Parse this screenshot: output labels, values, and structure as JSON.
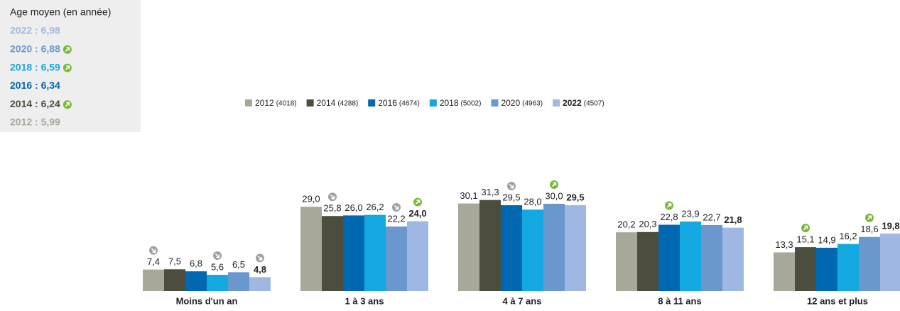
{
  "summary": {
    "title": "Age moyen (en année)",
    "items": [
      {
        "label": "2022 : 6,98",
        "color": "#9fb8e3",
        "trend": null
      },
      {
        "label": "2020 : 6,88",
        "color": "#6b97cf",
        "trend": "up"
      },
      {
        "label": "2018 : 6,59",
        "color": "#13a8e0",
        "trend": "up"
      },
      {
        "label": "2016 : 6,34",
        "color": "#0067b1",
        "trend": null
      },
      {
        "label": "2014 : 6,24",
        "color": "#4d4d3f",
        "trend": "up"
      },
      {
        "label": "2012 : 5,99",
        "color": "#a7a89a",
        "trend": null
      }
    ]
  },
  "chart_data": {
    "type": "bar",
    "categories": [
      "Moins d'un an",
      "1 à 3 ans",
      "4 à 7 ans",
      "8 à 11 ans",
      "12 ans et plus"
    ],
    "series": [
      {
        "name": "2012",
        "count": "(4018)",
        "color": "#a7a89a",
        "bold": false,
        "values": [
          7.4,
          29.0,
          30.1,
          20.2,
          13.3
        ],
        "value_labels": [
          "7,4",
          "29,0",
          "30,1",
          "20,2",
          "13,3"
        ],
        "trends": [
          "down",
          null,
          null,
          null,
          null
        ]
      },
      {
        "name": "2014",
        "count": "(4288)",
        "color": "#4d4d3f",
        "bold": false,
        "values": [
          7.5,
          25.8,
          31.3,
          20.3,
          15.1
        ],
        "value_labels": [
          "7,5",
          "25,8",
          "31,3",
          "20,3",
          "15,1"
        ],
        "trends": [
          null,
          "down",
          null,
          null,
          "up"
        ]
      },
      {
        "name": "2016",
        "count": "(4674)",
        "color": "#0067b1",
        "bold": false,
        "values": [
          6.8,
          26.0,
          29.5,
          22.8,
          14.9
        ],
        "value_labels": [
          "6,8",
          "26,0",
          "29,5",
          "22,8",
          "14,9"
        ],
        "trends": [
          null,
          null,
          "down",
          "up",
          null
        ]
      },
      {
        "name": "2018",
        "count": "(5002)",
        "color": "#13a8e0",
        "bold": false,
        "values": [
          5.6,
          26.2,
          28.0,
          23.9,
          16.2
        ],
        "value_labels": [
          "5,6",
          "26,2",
          "28,0",
          "23,9",
          "16,2"
        ],
        "trends": [
          "down",
          null,
          null,
          null,
          null
        ]
      },
      {
        "name": "2020",
        "count": "(4963)",
        "color": "#6b97cf",
        "bold": false,
        "values": [
          6.5,
          22.2,
          30.0,
          22.7,
          18.6
        ],
        "value_labels": [
          "6,5",
          "22,2",
          "30,0",
          "22,7",
          "18,6"
        ],
        "trends": [
          null,
          "down",
          "up",
          null,
          "up"
        ]
      },
      {
        "name": "2022",
        "count": "(4507)",
        "color": "#9fb8e3",
        "bold": true,
        "values": [
          4.8,
          24.0,
          29.5,
          21.8,
          19.8
        ],
        "value_labels": [
          "4,8",
          "24,0",
          "29,5",
          "21,8",
          "19,8"
        ],
        "trends": [
          "down",
          "up",
          null,
          null,
          null
        ]
      }
    ]
  }
}
